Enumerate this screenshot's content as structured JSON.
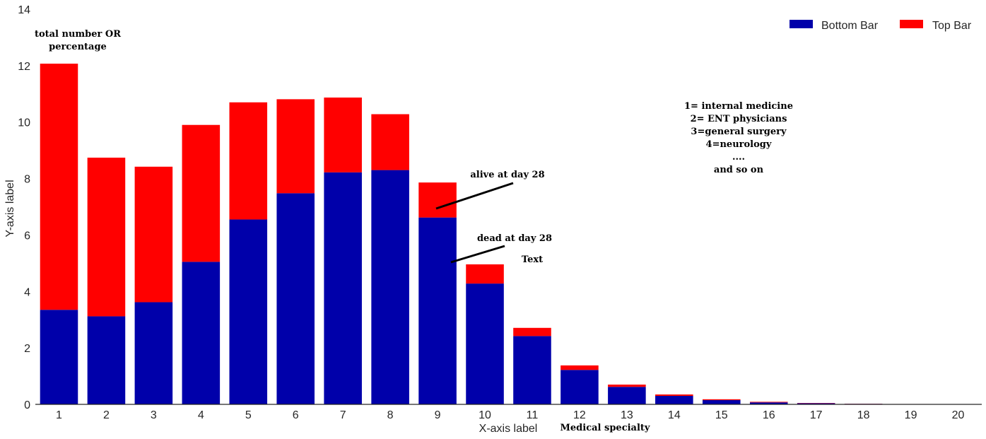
{
  "chart_data": {
    "type": "bar",
    "stacked": true,
    "categories": [
      "1",
      "2",
      "3",
      "4",
      "5",
      "6",
      "7",
      "8",
      "9",
      "10",
      "11",
      "12",
      "13",
      "14",
      "15",
      "16",
      "17",
      "18",
      "19",
      "20"
    ],
    "series": [
      {
        "name": "Bottom Bar",
        "color": "#0000aa",
        "values": [
          3.35,
          3.12,
          3.62,
          5.05,
          6.55,
          7.48,
          8.22,
          8.3,
          6.62,
          4.28,
          2.42,
          1.22,
          0.62,
          0.3,
          0.15,
          0.07,
          0.04,
          0.02,
          0.01,
          0.005
        ]
      },
      {
        "name": "Top Bar",
        "color": "#ff0000",
        "values": [
          8.72,
          5.62,
          4.8,
          4.85,
          4.15,
          3.33,
          2.65,
          1.98,
          1.24,
          0.68,
          0.29,
          0.16,
          0.08,
          0.05,
          0.03,
          0.02,
          0.01,
          0.005,
          0.003,
          0.002
        ]
      }
    ],
    "xlabel": "X-axis label",
    "ylabel": "Y-axis label",
    "ylim": [
      0,
      14
    ],
    "yticks": [
      0,
      2,
      4,
      6,
      8,
      10,
      12,
      14
    ],
    "grid": false,
    "legend": "top-right",
    "annotations": {
      "ylabel_note": [
        "total number OR",
        "percentage"
      ],
      "xlabel_note": "Medical specialty",
      "alive": "alive at day 28",
      "dead": "dead at day 28",
      "text": "Text",
      "specialty_key": [
        "1= internal medicine",
        "2= ENT physicians",
        "3=general surgery",
        "4=neurology",
        "....",
        "and so on"
      ]
    }
  }
}
